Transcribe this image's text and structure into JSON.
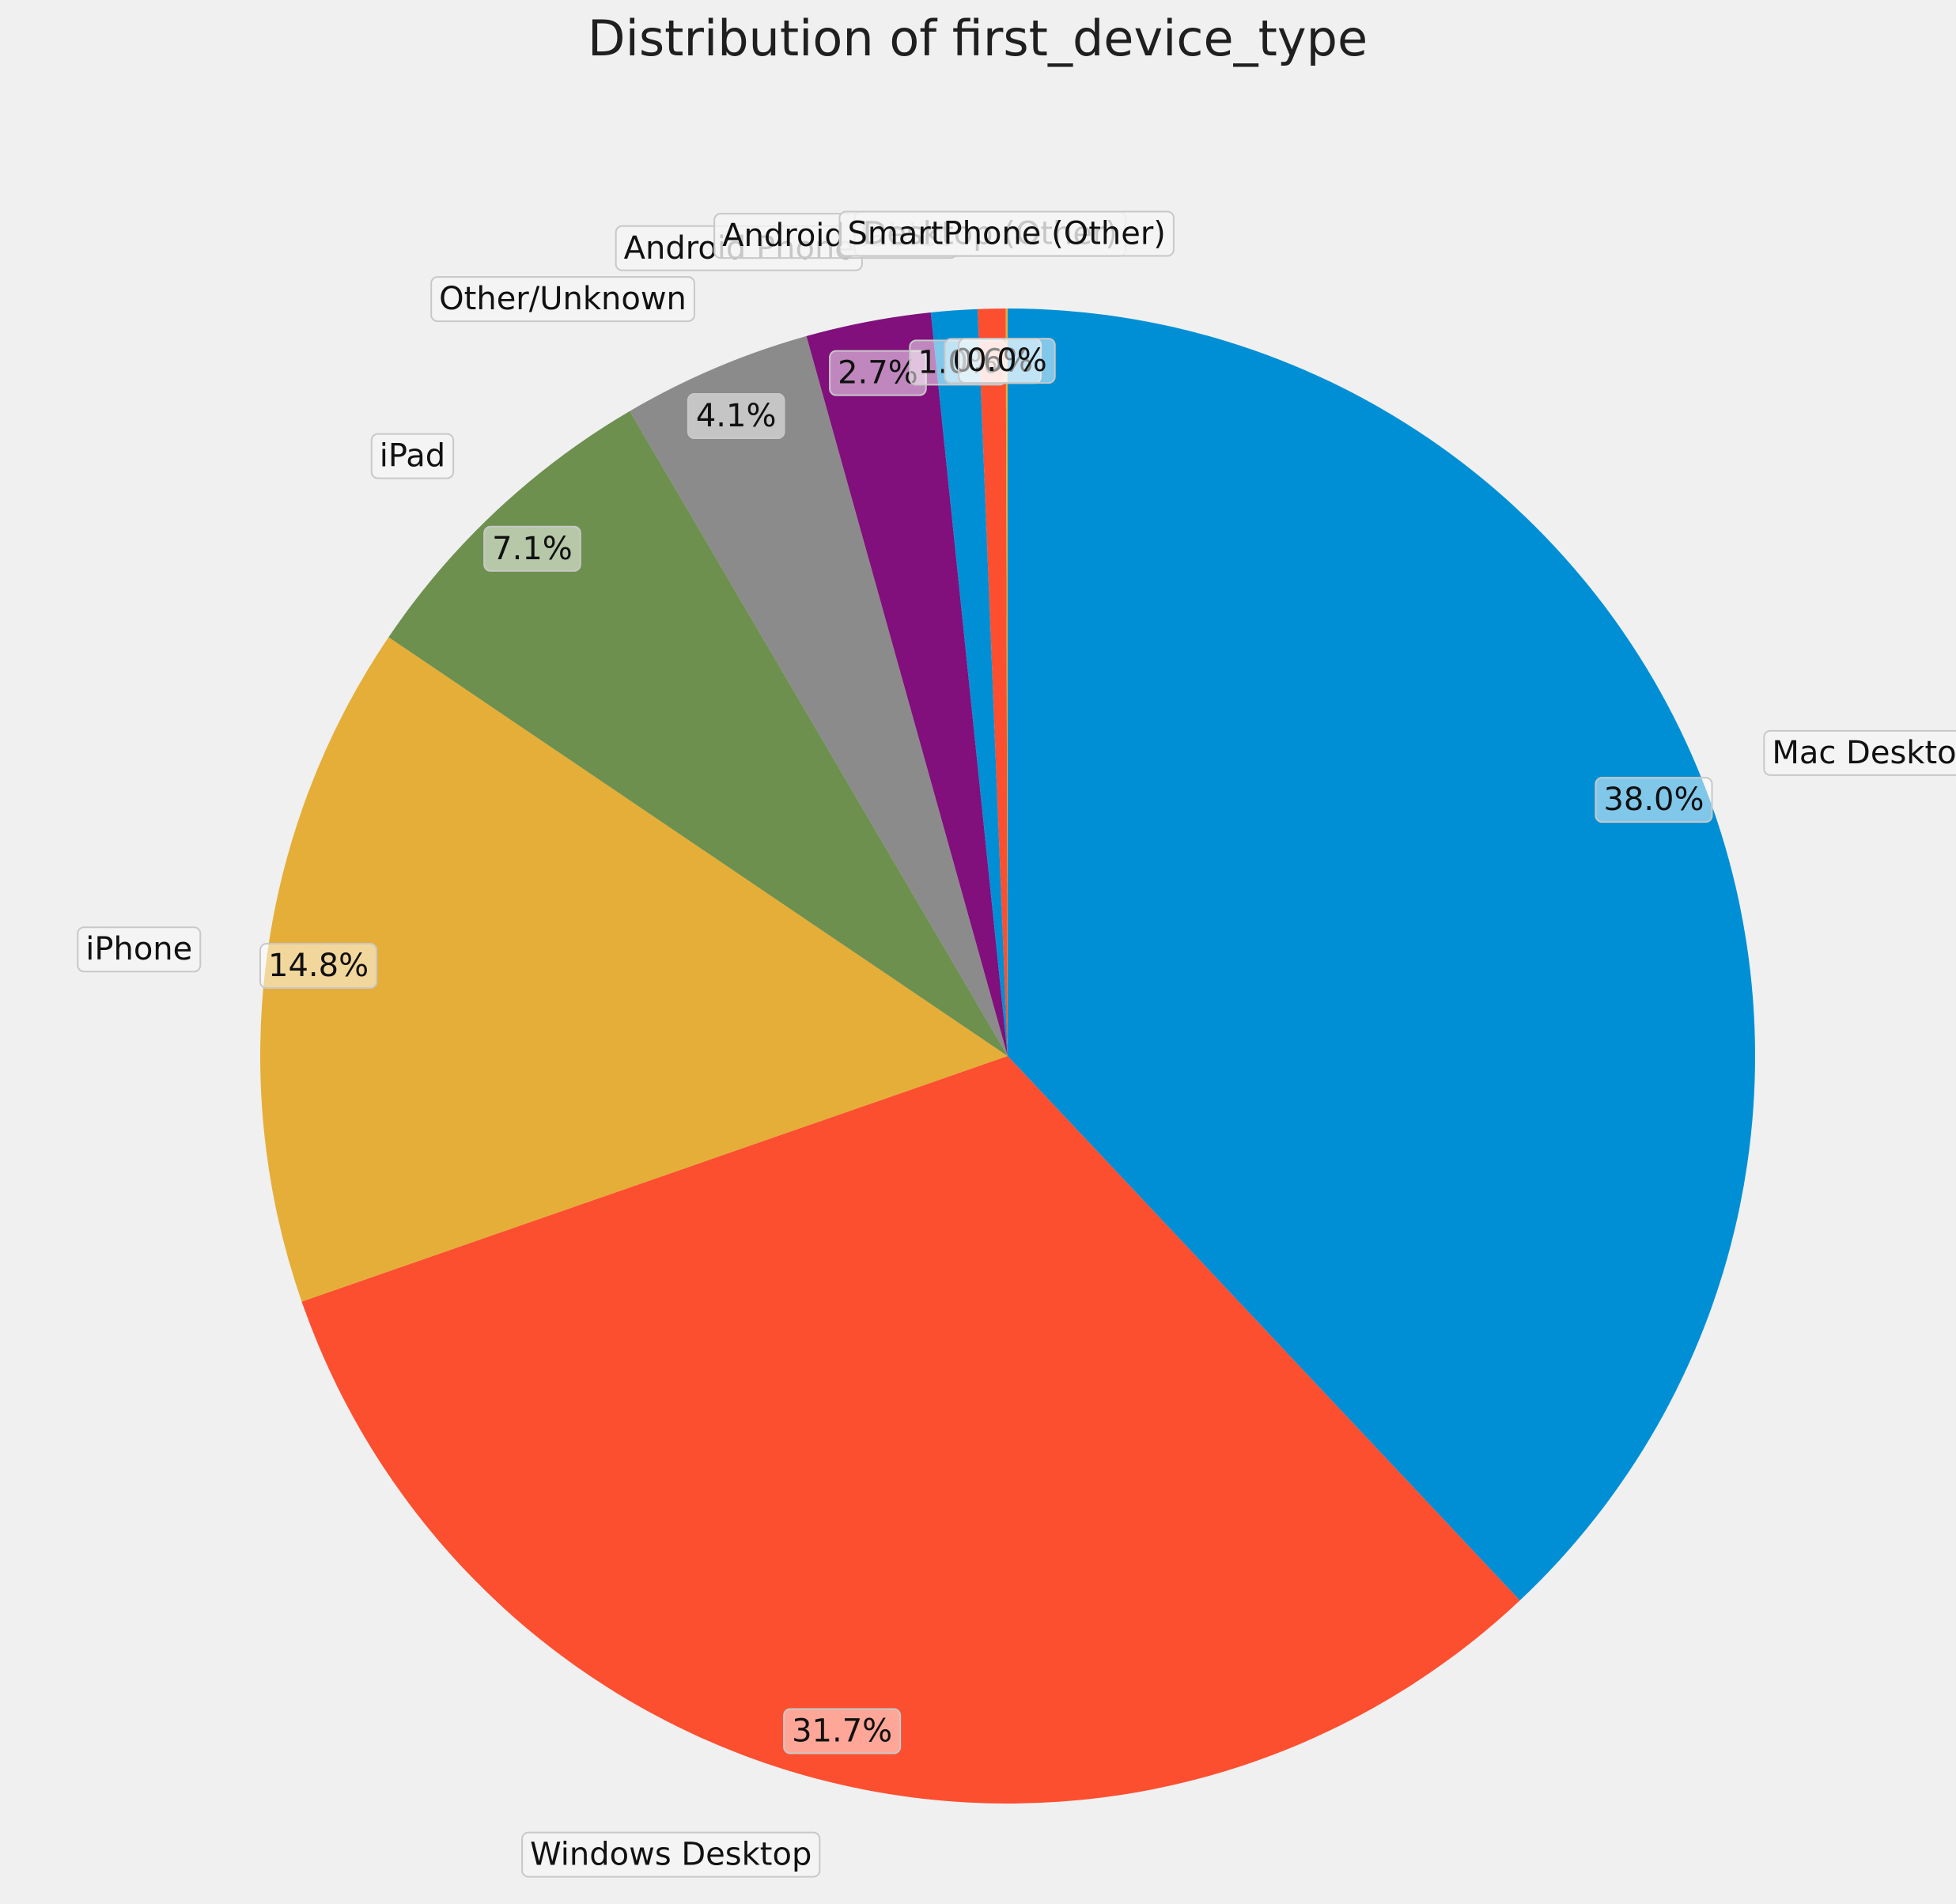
{
  "chart_data": {
    "type": "pie",
    "title": "Distribution of first_device_type",
    "start_angle_deg": 90,
    "direction": "clockwise",
    "slices": [
      {
        "label": "Mac Desktop",
        "value": 38.0,
        "pct_label": "38.0%",
        "color": "#008fd5"
      },
      {
        "label": "Windows Desktop",
        "value": 31.7,
        "pct_label": "31.7%",
        "color": "#fc4f30"
      },
      {
        "label": "iPhone",
        "value": 14.8,
        "pct_label": "14.8%",
        "color": "#e5ae38"
      },
      {
        "label": "iPad",
        "value": 7.1,
        "pct_label": "7.1%",
        "color": "#6d904f"
      },
      {
        "label": "Other/Unknown",
        "value": 4.1,
        "pct_label": "4.1%",
        "color": "#8b8b8b"
      },
      {
        "label": "Android Phone",
        "value": 2.7,
        "pct_label": "2.7%",
        "color": "#810f7c"
      },
      {
        "label": "Android Tablet",
        "value": 1.0,
        "pct_label": "1.0%",
        "color": "#008fd5"
      },
      {
        "label": "Desktop (Other)",
        "value": 0.6,
        "pct_label": "0.6%",
        "color": "#fc4f30"
      },
      {
        "label": "SmartPhone (Other)",
        "value": 0.04,
        "pct_label": "0.0%",
        "color": "#e5ae38"
      }
    ]
  }
}
